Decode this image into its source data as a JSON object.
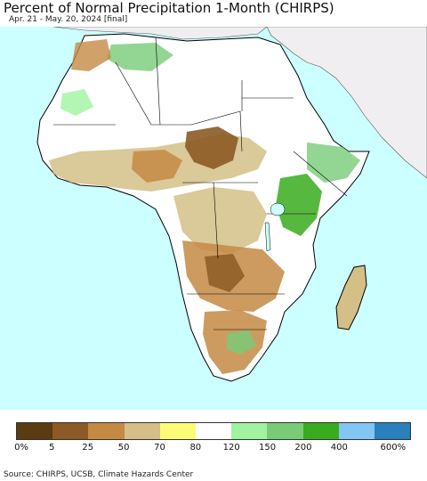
{
  "title": "Percent of Normal Precipitation 1-Month (CHIRPS)",
  "subtitle": "Apr. 21 - May. 20, 2024 [final]",
  "source": "Source: CHIRPS, UCSB, Climate Hazards Center",
  "legend": {
    "colors": [
      "#5a3b12",
      "#8c5a24",
      "#c48a44",
      "#d4bf87",
      "#fbfb78",
      "#ffffff",
      "#a0f3a0",
      "#78cc78",
      "#3aab1e",
      "#82c6f5",
      "#2a7fbd"
    ],
    "labels": [
      "0%",
      "5",
      "25",
      "50",
      "70",
      "80",
      "120",
      "150",
      "200",
      "400",
      "600%"
    ]
  },
  "colors": {
    "ocean": "#ccffff",
    "outside_land": "#f0eef0",
    "border": "#000000"
  }
}
